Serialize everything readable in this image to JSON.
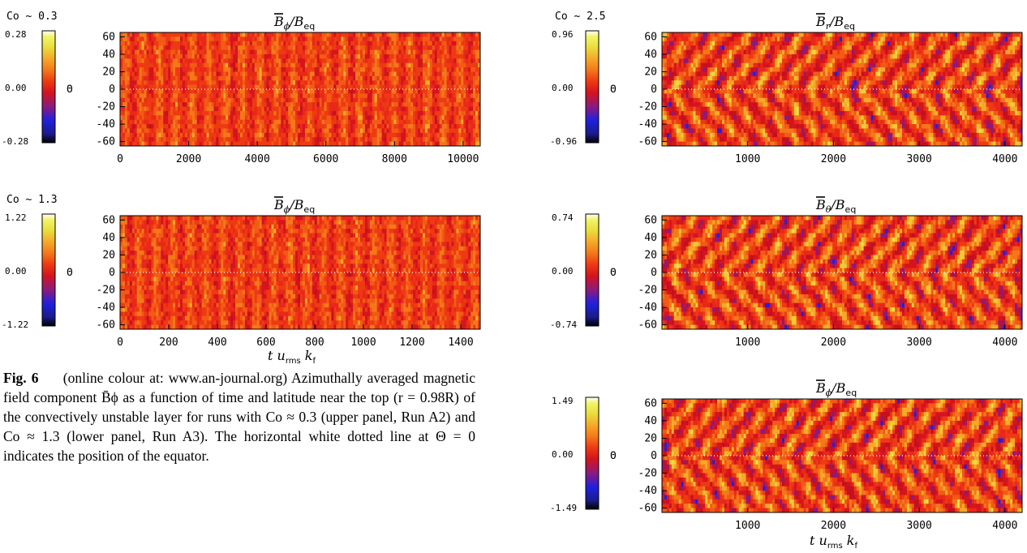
{
  "panels": [
    {
      "id": "left-top",
      "co_label": "Co ~ 0.3",
      "title_sym": "B",
      "title_sub": "ϕ",
      "title_rest": "/B",
      "title_rest_sub": "eq",
      "cb_ticks": [
        "0.28",
        "0.00",
        "-0.28"
      ],
      "theta_symbol": "Θ",
      "x_ticks": [
        "0",
        "2000",
        "4000",
        "6000",
        "8000",
        "10000"
      ],
      "x_label": "",
      "y_ticks": [
        "60",
        "40",
        "20",
        "0",
        "-20",
        "-40",
        "-60"
      ],
      "chart_data": {
        "type": "heatmap",
        "x_range": [
          0,
          10500
        ],
        "y_range": [
          -65,
          65
        ],
        "colorbar_range": [
          -0.28,
          0.28
        ],
        "xlabel": "",
        "ylabel": "",
        "equator_line": "white dotted at 0",
        "field": "B_phi / B_eq"
      }
    },
    {
      "id": "left-bottom",
      "co_label": "Co ~ 1.3",
      "title_sym": "B",
      "title_sub": "ϕ",
      "title_rest": "/B",
      "title_rest_sub": "eq",
      "cb_ticks": [
        "1.22",
        "0.00",
        "-1.22"
      ],
      "theta_symbol": "Θ",
      "x_ticks": [
        "0",
        "200",
        "400",
        "600",
        "800",
        "1000",
        "1200",
        "1400"
      ],
      "x_label": "t u",
      "y_ticks": [
        "60",
        "40",
        "20",
        "0",
        "-20",
        "-40",
        "-60"
      ],
      "chart_data": {
        "type": "heatmap",
        "x_range": [
          0,
          1480
        ],
        "y_range": [
          -65,
          65
        ],
        "colorbar_range": [
          -1.22,
          1.22
        ],
        "equator_line": "white dotted at 0",
        "field": "B_phi / B_eq"
      }
    },
    {
      "id": "right-top",
      "co_label": "Co ~ 2.5",
      "title_sym": "B",
      "title_sub": "r",
      "title_rest": "/B",
      "title_rest_sub": "eq",
      "cb_ticks": [
        "0.96",
        "0.00",
        "-0.96"
      ],
      "theta_symbol": "Θ",
      "x_ticks": [
        "1000",
        "2000",
        "3000",
        "4000"
      ],
      "x_label": "",
      "y_ticks": [
        "60",
        "40",
        "20",
        "0",
        "-20",
        "-40",
        "-60"
      ],
      "chart_data": {
        "type": "heatmap",
        "x_range": [
          0,
          4200
        ],
        "y_range": [
          -65,
          65
        ],
        "colorbar_range": [
          -0.96,
          0.96
        ],
        "equator_line": "white dotted at 0",
        "field": "B_r / B_eq"
      }
    },
    {
      "id": "right-mid",
      "co_label": "",
      "title_sym": "B",
      "title_sub": "θ",
      "title_rest": "/B",
      "title_rest_sub": "eq",
      "cb_ticks": [
        "0.74",
        "0.00",
        "-0.74"
      ],
      "theta_symbol": "Θ",
      "x_ticks": [
        "1000",
        "2000",
        "3000",
        "4000"
      ],
      "x_label": "",
      "y_ticks": [
        "60",
        "40",
        "20",
        "0",
        "-20",
        "-40",
        "-60"
      ],
      "chart_data": {
        "type": "heatmap",
        "x_range": [
          0,
          4200
        ],
        "y_range": [
          -65,
          65
        ],
        "colorbar_range": [
          -0.74,
          0.74
        ],
        "equator_line": "white dotted at 0",
        "field": "B_theta / B_eq"
      }
    },
    {
      "id": "right-bottom",
      "co_label": "",
      "title_sym": "B",
      "title_sub": "ϕ",
      "title_rest": "/B",
      "title_rest_sub": "eq",
      "cb_ticks": [
        "1.49",
        "0.00",
        "-1.49"
      ],
      "theta_symbol": "Θ",
      "x_ticks": [
        "1000",
        "2000",
        "3000",
        "4000"
      ],
      "x_label": "t u",
      "y_ticks": [
        "60",
        "40",
        "20",
        "0",
        "-20",
        "-40",
        "-60"
      ],
      "chart_data": {
        "type": "heatmap",
        "x_range": [
          0,
          4200
        ],
        "y_range": [
          -65,
          65
        ],
        "colorbar_range": [
          -1.49,
          1.49
        ],
        "equator_line": "white dotted at 0",
        "field": "B_phi / B_eq"
      }
    }
  ],
  "xlabel_sub1": "rms",
  "xlabel_k": "k",
  "xlabel_sub2": "f",
  "caption": {
    "fig_label": "Fig. 6",
    "text": "(online colour at: www.an-journal.org) Azimuthally averaged magnetic field component B̄ϕ as a function of time and latitude near the top (r = 0.98R) of the convectively unstable layer for runs with Co ≈ 0.3 (upper panel, Run A2) and Co ≈ 1.3 (lower panel, Run A3). The horizontal white dotted line at Θ = 0 indicates the position of the equator."
  },
  "colors": {
    "cmap": [
      "#000000",
      "#1b1b8c",
      "#2020e0",
      "#8a1a80",
      "#d4141e",
      "#ee3a12",
      "#f4781a",
      "#f6a828",
      "#e8e040",
      "#f4f46a",
      "#ffffff"
    ]
  }
}
